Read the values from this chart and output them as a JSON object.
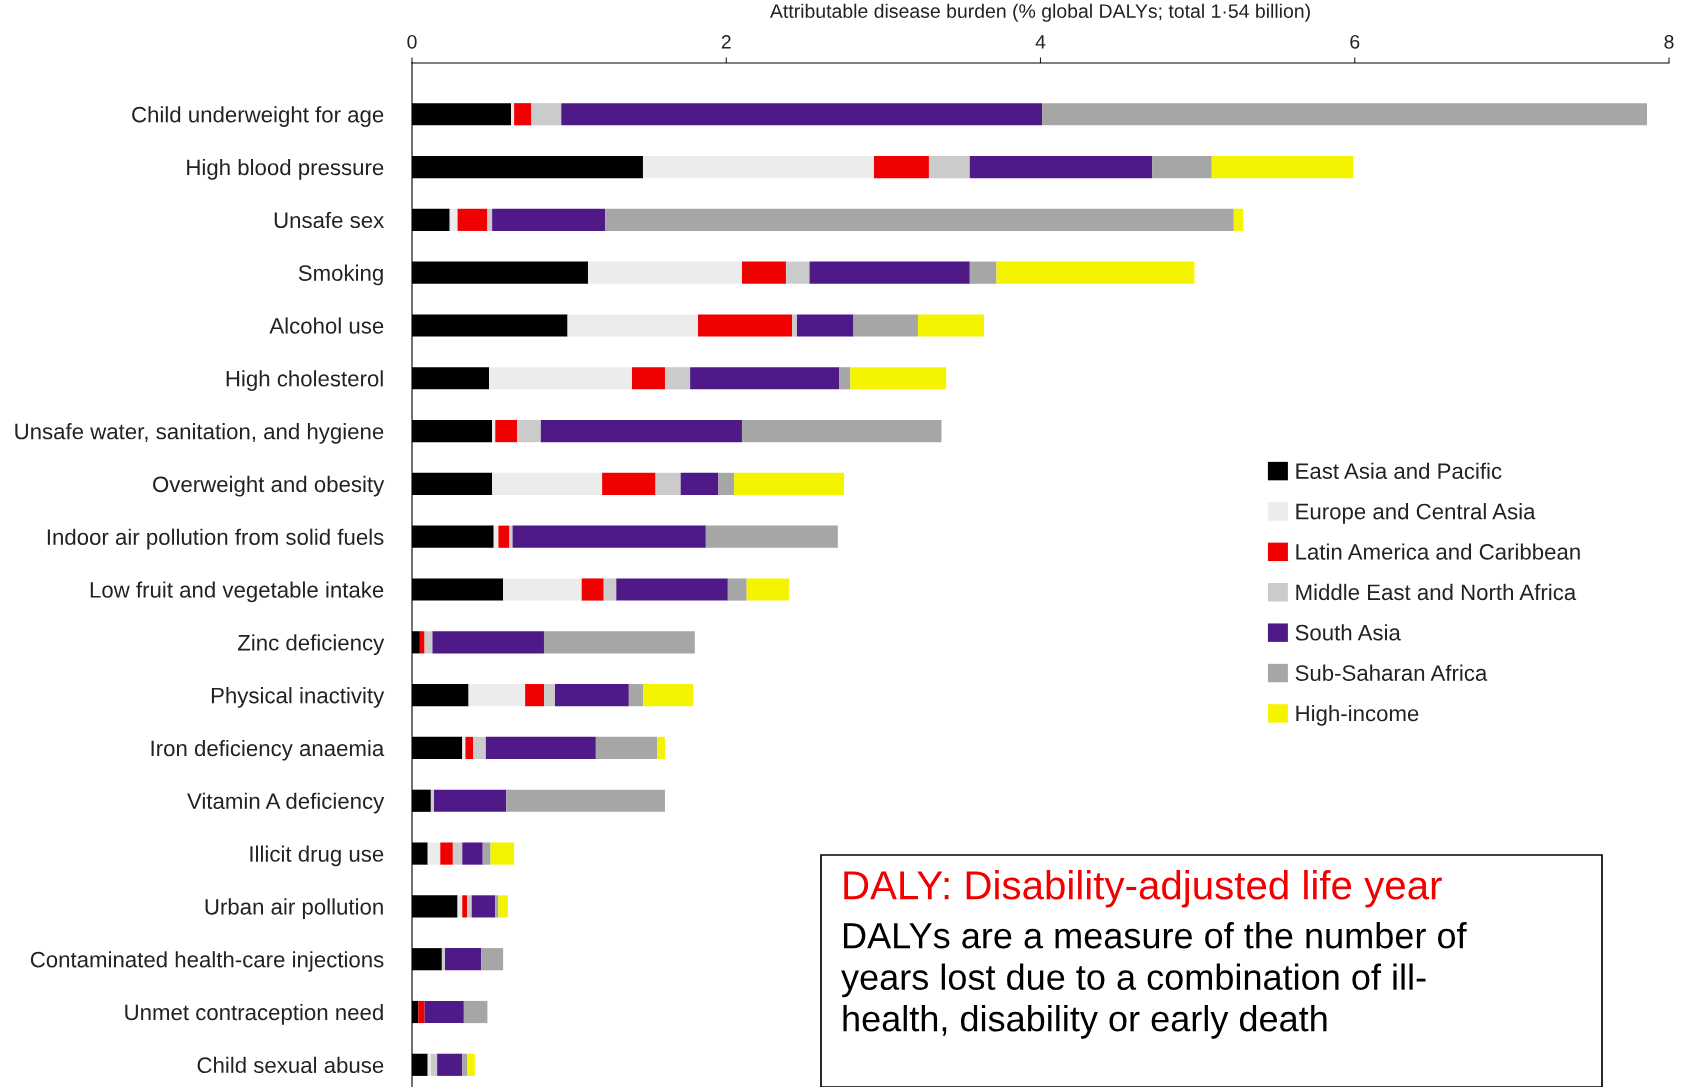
{
  "chart_data": {
    "type": "bar",
    "orientation": "horizontal",
    "stacked": true,
    "xlabel": "Attributable disease burden (% global DALYs; total 1·54 billion)",
    "categories": [
      "Child underweight for age",
      "High blood pressure",
      "Unsafe sex",
      "Smoking",
      "Alcohol use",
      "High cholesterol",
      "Unsafe water, sanitation, and hygiene",
      "Overweight and obesity",
      "Indoor air pollution from solid fuels",
      "Low fruit and vegetable intake",
      "Zinc deficiency",
      "Physical inactivity",
      "Iron deficiency anaemia",
      "Vitamin A deficiency",
      "Illicit drug use",
      "Urban air pollution",
      "Contaminated health-care injections",
      "Unmet contraception need",
      "Child sexual abuse"
    ],
    "series": [
      {
        "name": "East Asia and Pacific",
        "color": "#000000",
        "values": [
          0.63,
          1.47,
          0.24,
          1.12,
          0.99,
          0.49,
          0.51,
          0.51,
          0.52,
          0.58,
          0.05,
          0.36,
          0.32,
          0.12,
          0.1,
          0.29,
          0.19,
          0.04,
          0.1
        ]
      },
      {
        "name": "Europe and Central Asia",
        "color": "#ececec",
        "values": [
          0.02,
          1.47,
          0.05,
          0.98,
          0.83,
          0.91,
          0.02,
          0.7,
          0.03,
          0.5,
          0,
          0.36,
          0.02,
          0,
          0.08,
          0.03,
          0,
          0,
          0.02
        ]
      },
      {
        "name": "Latin America and Caribbean",
        "color": "#f00000",
        "values": [
          0.11,
          0.35,
          0.19,
          0.28,
          0.6,
          0.21,
          0.14,
          0.34,
          0.07,
          0.14,
          0.03,
          0.12,
          0.05,
          0,
          0.08,
          0.03,
          0,
          0.04,
          0
        ]
      },
      {
        "name": "Middle East and North Africa",
        "color": "#cbcbcb",
        "values": [
          0.19,
          0.26,
          0.03,
          0.15,
          0.03,
          0.16,
          0.15,
          0.16,
          0.02,
          0.08,
          0.05,
          0.07,
          0.08,
          0.02,
          0.06,
          0.03,
          0.02,
          0,
          0.04
        ]
      },
      {
        "name": "South Asia",
        "color": "#4f1a87",
        "values": [
          3.06,
          1.16,
          0.72,
          1.02,
          0.36,
          0.95,
          1.28,
          0.24,
          1.23,
          0.71,
          0.71,
          0.47,
          0.7,
          0.46,
          0.13,
          0.15,
          0.23,
          0.25,
          0.16
        ]
      },
      {
        "name": "Sub-Saharan Africa",
        "color": "#a6a6a6",
        "values": [
          3.85,
          0.38,
          4.0,
          0.17,
          0.41,
          0.07,
          1.27,
          0.1,
          0.84,
          0.12,
          0.96,
          0.09,
          0.39,
          1.01,
          0.05,
          0.02,
          0.14,
          0.15,
          0.03
        ]
      },
      {
        "name": "High-income",
        "color": "#f4f400",
        "values": [
          0,
          0.9,
          0.06,
          1.26,
          0.42,
          0.61,
          0,
          0.7,
          0,
          0.27,
          0,
          0.32,
          0.05,
          0,
          0.15,
          0.06,
          0,
          0,
          0.05
        ]
      }
    ],
    "xlim": [
      0,
      8
    ],
    "xticks": [
      0,
      2,
      4,
      6,
      8
    ],
    "grid": false,
    "legend": "right",
    "annotations": [
      "DALY: Disability-adjusted life year",
      "DALYs are a measure of the number of\nyears lost due to a combination of ill-\nhealth, disability or early death"
    ]
  }
}
